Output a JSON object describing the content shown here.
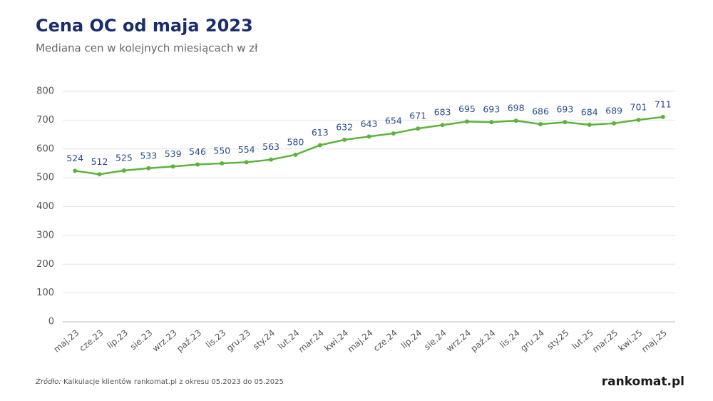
{
  "chart_data": {
    "type": "line",
    "title": "Cena OC od maja 2023",
    "subtitle": "Mediana cen w kolejnych miesiącach w zł",
    "categories": [
      "maj.23",
      "cze.23",
      "lip.23",
      "sie.23",
      "wrz.23",
      "paź.23",
      "lis.23",
      "gru.23",
      "sty.24",
      "lut.24",
      "mar.24",
      "kwi.24",
      "maj.24",
      "cze.24",
      "lip.24",
      "sie.24",
      "wrz.24",
      "paź.24",
      "lis.24",
      "gru.24",
      "sty.25",
      "lut.25",
      "mar.25",
      "kwi.25",
      "maj.25"
    ],
    "values": [
      524,
      512,
      525,
      533,
      539,
      546,
      550,
      554,
      563,
      580,
      613,
      632,
      643,
      654,
      671,
      683,
      695,
      693,
      698,
      686,
      693,
      684,
      689,
      701,
      711
    ],
    "color": "#5db33a",
    "label_color": "#2b4d8c",
    "ylim": [
      0,
      800
    ],
    "yticks": [
      0,
      100,
      200,
      300,
      400,
      500,
      600,
      700,
      800
    ],
    "grid": true,
    "source_label": "Źródło:",
    "source_text": "Kalkulacje klientów rankomat.pl z okresu 05.2023 do 05.2025",
    "logo": "rankomat.pl"
  }
}
